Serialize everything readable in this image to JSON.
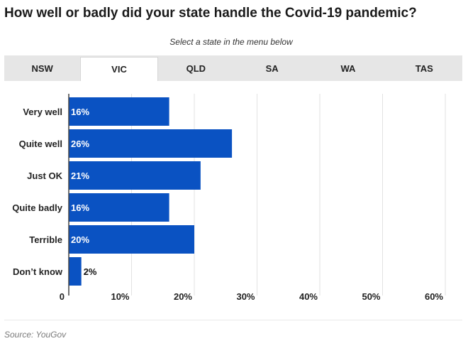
{
  "header": {
    "title": "How well or badly did your state handle the Covid-19 pandemic?",
    "subtitle": "Select a state in the menu below"
  },
  "tabs": [
    {
      "label": "NSW",
      "active": false
    },
    {
      "label": "VIC",
      "active": true
    },
    {
      "label": "QLD",
      "active": false
    },
    {
      "label": "SA",
      "active": false
    },
    {
      "label": "WA",
      "active": false
    },
    {
      "label": "TAS",
      "active": false
    }
  ],
  "footer": {
    "source": "Source: YouGov"
  },
  "colors": {
    "bar": "#0a52c2",
    "grid": "#e2e2e2",
    "axis": "#444444"
  },
  "chart_data": {
    "type": "bar",
    "orientation": "horizontal",
    "categories": [
      "Very well",
      "Quite well",
      "Just OK",
      "Quite badly",
      "Terrible",
      "Don’t know"
    ],
    "values": [
      16,
      26,
      21,
      16,
      20,
      2
    ],
    "data_labels": [
      "16%",
      "26%",
      "21%",
      "16%",
      "20%",
      "2%"
    ],
    "x_ticks": [
      "0",
      "10%",
      "20%",
      "30%",
      "40%",
      "50%",
      "60%"
    ],
    "xlim": [
      0,
      60
    ],
    "grid": true
  }
}
